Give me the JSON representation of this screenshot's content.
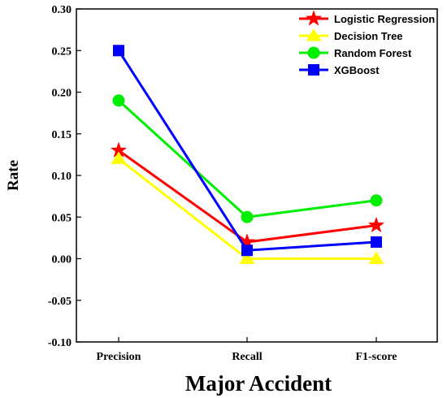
{
  "chart_data": {
    "type": "line",
    "title": "",
    "xlabel": "Major Accident",
    "ylabel": "Rate",
    "categories": [
      "Precision",
      "Recall",
      "F1-score"
    ],
    "ylim": [
      -0.1,
      0.3
    ],
    "yticks": [
      "-0.10",
      "-0.05",
      "0.00",
      "0.05",
      "0.10",
      "0.15",
      "0.20",
      "0.25",
      "0.30"
    ],
    "grid": false,
    "legend_position": "top-right",
    "series": [
      {
        "name": "Logistic Regression",
        "values": [
          0.13,
          0.02,
          0.04
        ],
        "color": "#ff0000",
        "marker": "star"
      },
      {
        "name": "Decision Tree",
        "values": [
          0.12,
          0.0,
          0.0
        ],
        "color": "#ffff00",
        "marker": "triangle"
      },
      {
        "name": "Random Forest",
        "values": [
          0.19,
          0.05,
          0.07
        ],
        "color": "#00ee00",
        "marker": "circle"
      },
      {
        "name": "XGBoost",
        "values": [
          0.25,
          0.01,
          0.02
        ],
        "color": "#0000ff",
        "marker": "square"
      }
    ]
  }
}
